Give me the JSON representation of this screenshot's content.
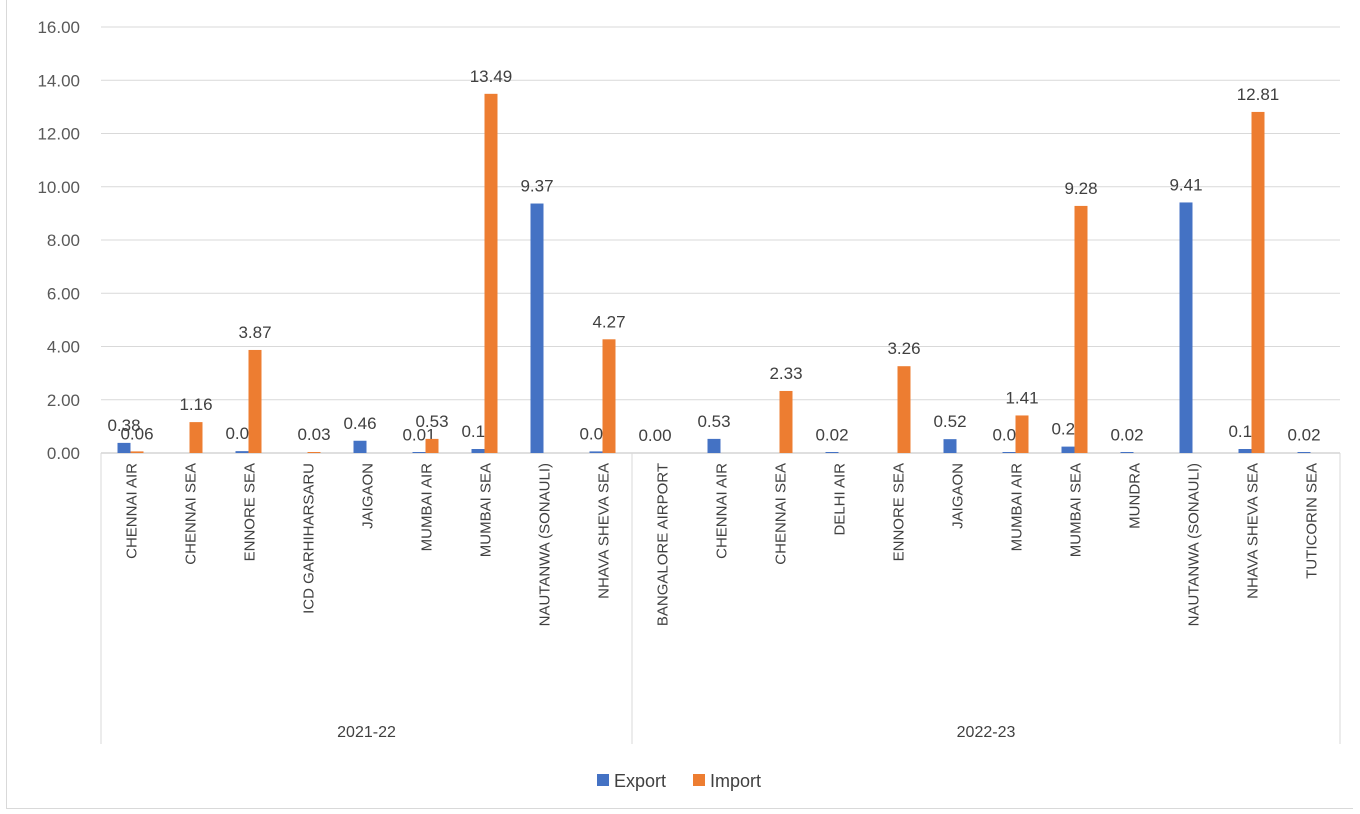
{
  "chart_data": {
    "type": "bar",
    "title": "",
    "xlabel": "",
    "ylabel": "",
    "ylim": [
      0,
      16
    ],
    "ytick_labels": [
      "0.00",
      "2.00",
      "4.00",
      "6.00",
      "8.00",
      "10.00",
      "12.00",
      "14.00",
      "16.00"
    ],
    "grid": true,
    "legend_position": "bottom",
    "groups": [
      {
        "label": "2021-22",
        "count": 9
      },
      {
        "label": "2022-23",
        "count": 12
      }
    ],
    "categories": [
      "CHENNAI AIR",
      "CHENNAI SEA",
      "ENNORE SEA",
      "ICD GARHIHARSARU",
      "JAIGAON",
      "MUMBAI AIR",
      "MUMBAI SEA",
      "NAUTANWA (SONAULI)",
      "NHAVA SHEVA SEA",
      "BANGALORE AIRPORT",
      "CHENNAI AIR",
      "CHENNAI SEA",
      "DELHI AIR",
      "ENNORE SEA",
      "JAIGAON",
      "MUMBAI AIR",
      "MUMBAI SEA",
      "MUNDRA",
      "NAUTANWA (SONAULI)",
      "NHAVA SHEVA SEA",
      "TUTICORIN SEA"
    ],
    "series": [
      {
        "name": "Export",
        "color": "#4472c4",
        "values": [
          0.38,
          null,
          0.07,
          null,
          0.46,
          0.01,
          0.15,
          9.37,
          0.06,
          0.0,
          0.53,
          null,
          0.02,
          null,
          0.52,
          0.02,
          0.24,
          0.02,
          9.41,
          0.15,
          0.02
        ],
        "labels": [
          "0.38",
          "",
          "0.07",
          "",
          "0.46",
          "0.01",
          "0.15",
          "9.37",
          "0.06",
          "0.00",
          "0.53",
          "",
          "0.02",
          "",
          "0.52",
          "0.02",
          "0.24",
          "0.02",
          "9.41",
          "0.15",
          "0.02"
        ]
      },
      {
        "name": "Import",
        "color": "#ed7d31",
        "values": [
          0.06,
          1.16,
          3.87,
          0.03,
          null,
          0.53,
          13.49,
          null,
          4.27,
          null,
          null,
          2.33,
          null,
          3.26,
          null,
          1.41,
          9.28,
          null,
          null,
          12.81,
          null
        ],
        "labels": [
          "0.06",
          "1.16",
          "3.87",
          "0.03",
          "",
          "0.53",
          "13.49",
          "",
          "4.27",
          "",
          "",
          "2.33",
          "",
          "3.26",
          "",
          "1.41",
          "9.28",
          "",
          "",
          "12.81",
          ""
        ]
      }
    ]
  }
}
